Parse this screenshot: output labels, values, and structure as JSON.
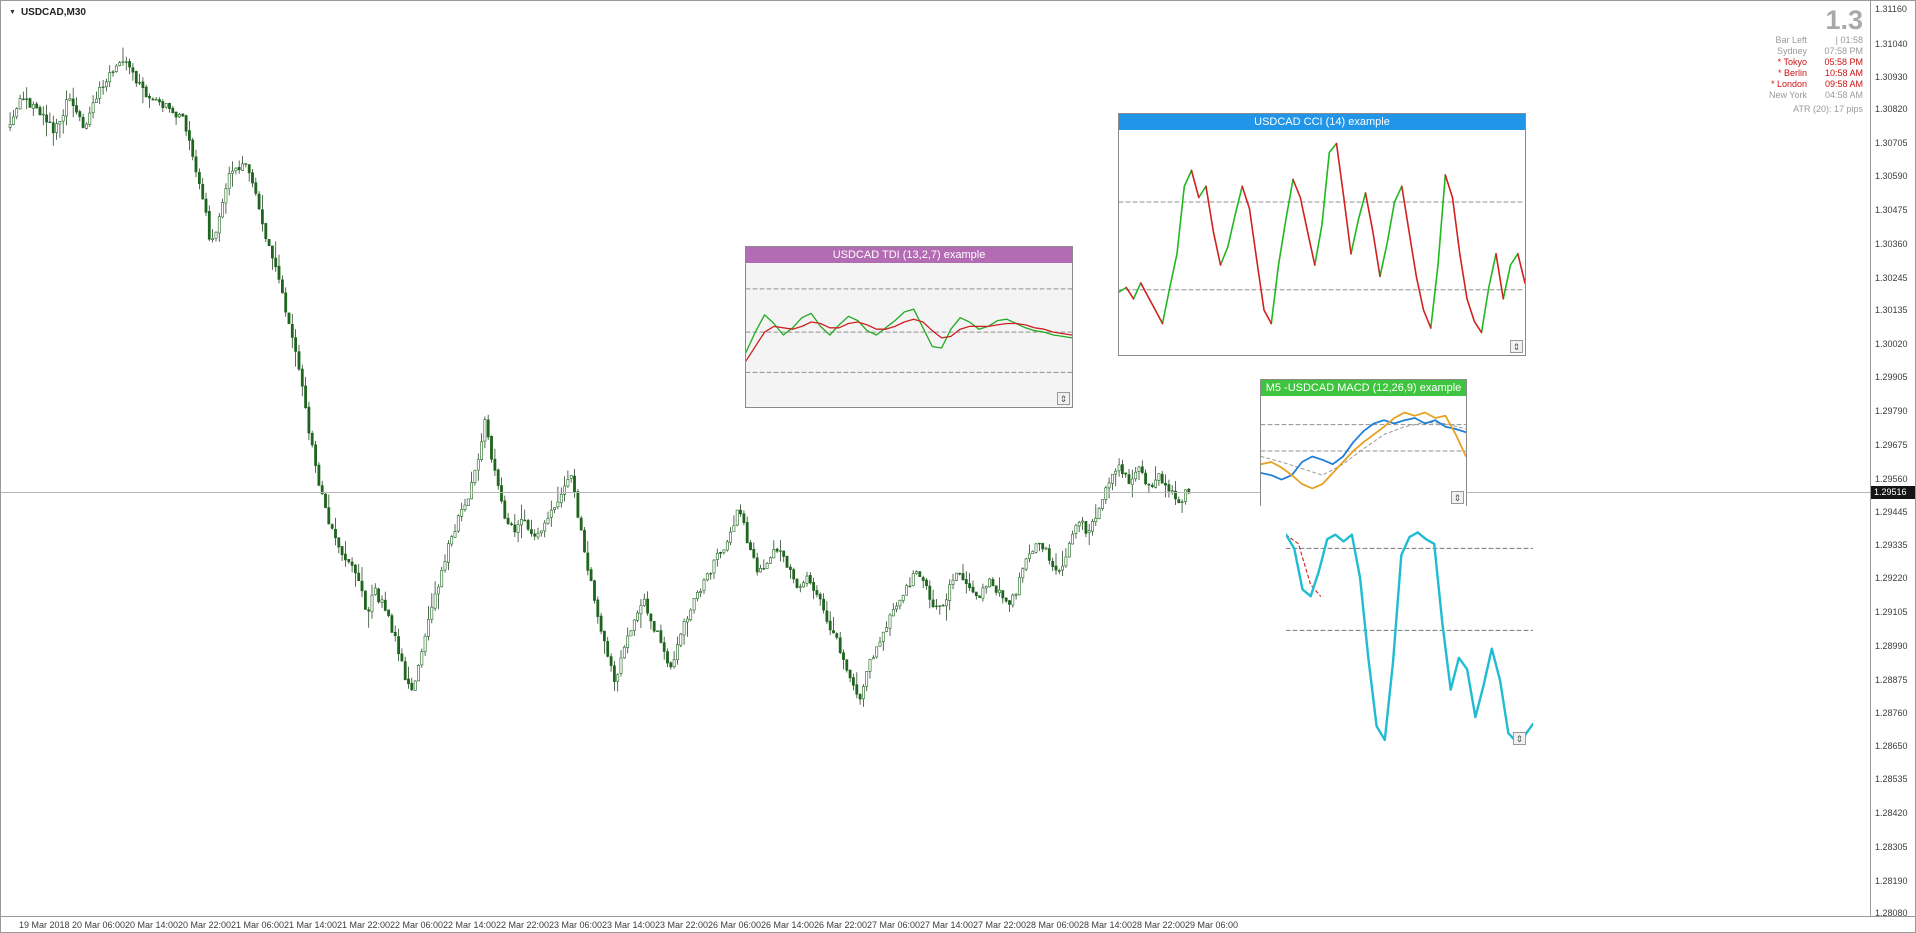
{
  "window": {
    "symbol_label": "USDCAD,M30"
  },
  "info_panel": {
    "big_number": "1.3",
    "rows": [
      {
        "name": "Bar Left",
        "time": "| 01:58",
        "red": false
      },
      {
        "name": "Sydney",
        "time": "07:58 PM",
        "red": false
      },
      {
        "name": "* Tokyo",
        "time": "05:58 PM",
        "red": true
      },
      {
        "name": "* Berlin",
        "time": "10:58 AM",
        "red": true
      },
      {
        "name": "* London",
        "time": "09:58 AM",
        "red": true
      },
      {
        "name": "New York",
        "time": "04:58 AM",
        "red": false
      }
    ],
    "atr_label": "ATR (20): 17 pips"
  },
  "price_axis": {
    "max": 1.3116,
    "min": 1.2808,
    "current_price": "1.29516",
    "labels": [
      "1.31160",
      "1.31040",
      "1.30930",
      "1.30820",
      "1.30705",
      "1.30590",
      "1.30475",
      "1.30360",
      "1.30245",
      "1.30135",
      "1.30020",
      "1.29905",
      "1.29790",
      "1.29675",
      "1.29560",
      "1.29445",
      "1.29335",
      "1.29220",
      "1.29105",
      "1.28990",
      "1.28875",
      "1.28760",
      "1.28650",
      "1.28535",
      "1.28420",
      "1.28305",
      "1.28190",
      "1.28080"
    ]
  },
  "time_axis": {
    "labels": [
      "19 Mar 2018",
      "20 Mar 06:00",
      "20 Mar 14:00",
      "20 Mar 22:00",
      "21 Mar 06:00",
      "21 Mar 14:00",
      "21 Mar 22:00",
      "22 Mar 06:00",
      "22 Mar 14:00",
      "22 Mar 22:00",
      "23 Mar 06:00",
      "23 Mar 14:00",
      "23 Mar 22:00",
      "26 Mar 06:00",
      "26 Mar 14:00",
      "26 Mar 22:00",
      "27 Mar 06:00",
      "27 Mar 14:00",
      "27 Mar 22:00",
      "28 Mar 06:00",
      "28 Mar 14:00",
      "28 Mar 22:00",
      "29 Mar 06:00"
    ]
  },
  "chart_data": {
    "type": "candlestick",
    "symbol": "USDCAD",
    "timeframe": "M30",
    "up_color": "#ffffff",
    "down_color": "#1e651e",
    "outline_color": "#1e651e",
    "wick_color": "#2a4a2a",
    "anchors": [
      [
        0.0,
        1.3076
      ],
      [
        0.014,
        1.3086
      ],
      [
        0.027,
        1.3081
      ],
      [
        0.04,
        1.3074
      ],
      [
        0.052,
        1.3085
      ],
      [
        0.065,
        1.3076
      ],
      [
        0.078,
        1.3088
      ],
      [
        0.091,
        1.3095
      ],
      [
        0.101,
        1.3098
      ],
      [
        0.112,
        1.309
      ],
      [
        0.124,
        1.3085
      ],
      [
        0.137,
        1.3083
      ],
      [
        0.15,
        1.3078
      ],
      [
        0.158,
        1.3064
      ],
      [
        0.167,
        1.3049
      ],
      [
        0.173,
        1.3035
      ],
      [
        0.179,
        1.3044
      ],
      [
        0.188,
        1.3059
      ],
      [
        0.2,
        1.3064
      ],
      [
        0.209,
        1.3056
      ],
      [
        0.217,
        1.3042
      ],
      [
        0.226,
        1.303
      ],
      [
        0.234,
        1.3017
      ],
      [
        0.243,
        1.3001
      ],
      [
        0.251,
        1.2984
      ],
      [
        0.257,
        1.2969
      ],
      [
        0.264,
        1.2955
      ],
      [
        0.272,
        1.2942
      ],
      [
        0.281,
        1.2933
      ],
      [
        0.289,
        1.2928
      ],
      [
        0.298,
        1.2921
      ],
      [
        0.305,
        1.2909
      ],
      [
        0.311,
        1.2918
      ],
      [
        0.318,
        1.2913
      ],
      [
        0.325,
        1.2906
      ],
      [
        0.332,
        1.2897
      ],
      [
        0.338,
        1.2887
      ],
      [
        0.343,
        1.2884
      ],
      [
        0.349,
        1.2894
      ],
      [
        0.357,
        1.2908
      ],
      [
        0.366,
        1.2921
      ],
      [
        0.374,
        1.2933
      ],
      [
        0.382,
        1.2942
      ],
      [
        0.391,
        1.295
      ],
      [
        0.399,
        1.2962
      ],
      [
        0.405,
        1.2976
      ],
      [
        0.412,
        1.2959
      ],
      [
        0.42,
        1.2945
      ],
      [
        0.429,
        1.2938
      ],
      [
        0.437,
        1.2943
      ],
      [
        0.446,
        1.2935
      ],
      [
        0.454,
        1.294
      ],
      [
        0.463,
        1.2947
      ],
      [
        0.471,
        1.2952
      ],
      [
        0.477,
        1.2959
      ],
      [
        0.484,
        1.2942
      ],
      [
        0.492,
        1.2925
      ],
      [
        0.501,
        1.2908
      ],
      [
        0.509,
        1.2894
      ],
      [
        0.515,
        1.2886
      ],
      [
        0.522,
        1.2898
      ],
      [
        0.53,
        1.2908
      ],
      [
        0.539,
        1.2915
      ],
      [
        0.547,
        1.2906
      ],
      [
        0.556,
        1.2898
      ],
      [
        0.562,
        1.2891
      ],
      [
        0.568,
        1.2901
      ],
      [
        0.577,
        1.291
      ],
      [
        0.585,
        1.2917
      ],
      [
        0.594,
        1.2923
      ],
      [
        0.602,
        1.293
      ],
      [
        0.611,
        1.2935
      ],
      [
        0.619,
        1.2947
      ],
      [
        0.628,
        1.2933
      ],
      [
        0.636,
        1.2923
      ],
      [
        0.645,
        1.293
      ],
      [
        0.653,
        1.2933
      ],
      [
        0.661,
        1.2925
      ],
      [
        0.67,
        1.2918
      ],
      [
        0.678,
        1.2923
      ],
      [
        0.687,
        1.2915
      ],
      [
        0.695,
        1.2906
      ],
      [
        0.704,
        1.2899
      ],
      [
        0.712,
        1.289
      ],
      [
        0.721,
        1.288
      ],
      [
        0.729,
        1.2892
      ],
      [
        0.738,
        1.2901
      ],
      [
        0.746,
        1.2908
      ],
      [
        0.755,
        1.2915
      ],
      [
        0.763,
        1.292
      ],
      [
        0.771,
        1.2925
      ],
      [
        0.78,
        1.2917
      ],
      [
        0.788,
        1.291
      ],
      [
        0.797,
        1.2918
      ],
      [
        0.805,
        1.2925
      ],
      [
        0.814,
        1.292
      ],
      [
        0.822,
        1.2915
      ],
      [
        0.831,
        1.2921
      ],
      [
        0.839,
        1.2917
      ],
      [
        0.848,
        1.2912
      ],
      [
        0.856,
        1.292
      ],
      [
        0.864,
        1.2929
      ],
      [
        0.873,
        1.2935
      ],
      [
        0.881,
        1.293
      ],
      [
        0.89,
        1.2923
      ],
      [
        0.898,
        1.2933
      ],
      [
        0.907,
        1.2942
      ],
      [
        0.915,
        1.2937
      ],
      [
        0.924,
        1.2945
      ],
      [
        0.932,
        1.2955
      ],
      [
        0.941,
        1.296
      ],
      [
        0.949,
        1.2955
      ],
      [
        0.958,
        1.2959
      ],
      [
        0.966,
        1.2953
      ],
      [
        0.974,
        1.2957
      ],
      [
        0.983,
        1.2952
      ],
      [
        0.991,
        1.2948
      ],
      [
        1.0,
        1.2952
      ]
    ]
  },
  "indicator_windows": {
    "tdi": {
      "title": "USDCAD TDI (13,2,7) example",
      "header_color": "#b36bb3",
      "body_bg": "#f4f4f4",
      "level_color": "#909090",
      "levels": [
        0.18,
        0.48,
        0.76
      ],
      "green_color": "#22aa22",
      "red_color": "#cc2222",
      "green_line": [
        0.62,
        0.48,
        0.36,
        0.42,
        0.5,
        0.45,
        0.38,
        0.35,
        0.44,
        0.5,
        0.43,
        0.37,
        0.4,
        0.47,
        0.5,
        0.45,
        0.4,
        0.34,
        0.32,
        0.45,
        0.58,
        0.59,
        0.46,
        0.38,
        0.41,
        0.46,
        0.44,
        0.4,
        0.39,
        0.42,
        0.45,
        0.47,
        0.48,
        0.5,
        0.51,
        0.52
      ],
      "red_line": [
        0.68,
        0.58,
        0.48,
        0.44,
        0.45,
        0.46,
        0.44,
        0.41,
        0.42,
        0.45,
        0.45,
        0.42,
        0.41,
        0.43,
        0.46,
        0.46,
        0.44,
        0.41,
        0.39,
        0.41,
        0.47,
        0.52,
        0.51,
        0.46,
        0.44,
        0.44,
        0.44,
        0.43,
        0.42,
        0.42,
        0.43,
        0.45,
        0.46,
        0.48,
        0.49,
        0.5
      ]
    },
    "cci": {
      "title": "USDCAD CCI (14) example",
      "header_color": "#2196e8",
      "body_bg": "#ffffff",
      "level_color": "#909090",
      "levels": [
        0.32,
        0.71
      ],
      "up_color": "#1fb81f",
      "down_color": "#d02020",
      "line": [
        0.72,
        0.7,
        0.75,
        0.68,
        0.74,
        0.8,
        0.86,
        0.7,
        0.55,
        0.25,
        0.18,
        0.3,
        0.25,
        0.45,
        0.6,
        0.52,
        0.38,
        0.25,
        0.35,
        0.58,
        0.8,
        0.86,
        0.6,
        0.4,
        0.22,
        0.3,
        0.45,
        0.6,
        0.42,
        0.1,
        0.06,
        0.3,
        0.55,
        0.4,
        0.28,
        0.45,
        0.65,
        0.5,
        0.32,
        0.25,
        0.45,
        0.65,
        0.8,
        0.88,
        0.6,
        0.2,
        0.3,
        0.55,
        0.75,
        0.85,
        0.9,
        0.7,
        0.55,
        0.75,
        0.6,
        0.55,
        0.68
      ]
    },
    "macd": {
      "title": "M5 -USDCAD MACD (12,26,9) example",
      "header_color": "#3ec43e",
      "body_bg": "#ffffff",
      "level_color": "#909090",
      "levels": [
        0.26,
        0.5
      ],
      "macd_color": "#1e7fd6",
      "orange_color": "#e8a020",
      "signal_dash_color": "#999999",
      "macd_line": [
        0.7,
        0.72,
        0.76,
        0.72,
        0.6,
        0.55,
        0.58,
        0.62,
        0.55,
        0.42,
        0.32,
        0.25,
        0.22,
        0.25,
        0.22,
        0.2,
        0.25,
        0.22,
        0.28,
        0.3,
        0.33
      ],
      "orange_line": [
        0.62,
        0.6,
        0.65,
        0.72,
        0.8,
        0.84,
        0.8,
        0.7,
        0.6,
        0.5,
        0.42,
        0.35,
        0.28,
        0.2,
        0.15,
        0.18,
        0.15,
        0.2,
        0.18,
        0.35,
        0.55
      ],
      "dash_line": [
        0.55,
        0.6,
        0.66,
        0.72,
        0.62,
        0.48,
        0.35,
        0.28,
        0.24,
        0.25,
        0.3
      ]
    }
  },
  "oscillator": {
    "color": "#1fbcd2",
    "red_dash_color": "#cc2222",
    "level_color": "#787878",
    "levels": [
      0.12,
      0.48
    ],
    "line": [
      0.06,
      0.12,
      0.3,
      0.33,
      0.22,
      0.08,
      0.06,
      0.09,
      0.06,
      0.25,
      0.6,
      0.9,
      0.96,
      0.62,
      0.15,
      0.07,
      0.05,
      0.08,
      0.1,
      0.45,
      0.74,
      0.6,
      0.65,
      0.86,
      0.72,
      0.56,
      0.7,
      0.93,
      0.97,
      0.94,
      0.89
    ],
    "red_dash": [
      [
        0.0,
        0.06
      ],
      [
        0.05,
        0.1
      ],
      [
        0.1,
        0.28
      ],
      [
        0.14,
        0.33
      ]
    ]
  },
  "icons": {
    "dropdown": "▼",
    "anchor": "⇕"
  }
}
